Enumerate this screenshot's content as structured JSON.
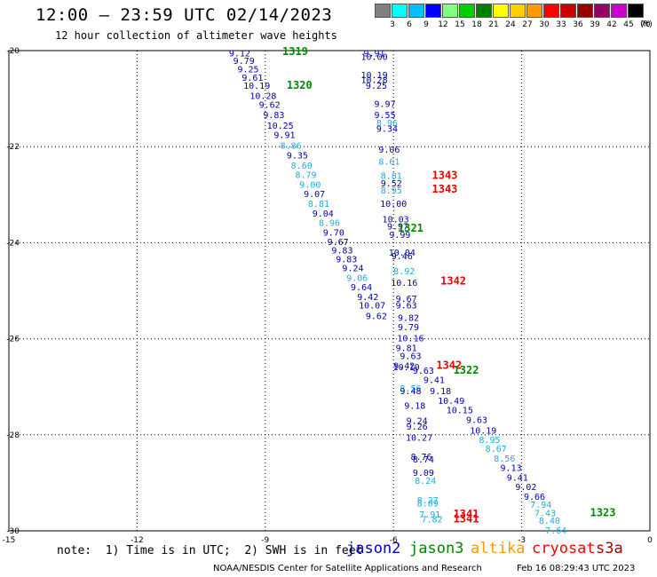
{
  "title": "12:00 – 23:59 UTC 02/14/2023",
  "subtitle": "12 hour collection of altimeter wave heights",
  "scale": {
    "unit": "(ft)",
    "items": [
      {
        "label": "3",
        "color": "#808080"
      },
      {
        "label": "6",
        "color": "#00ffff"
      },
      {
        "label": "9",
        "color": "#00bfff"
      },
      {
        "label": "12",
        "color": "#0000ff"
      },
      {
        "label": "15",
        "color": "#80ff80"
      },
      {
        "label": "18",
        "color": "#00d000"
      },
      {
        "label": "21",
        "color": "#008000"
      },
      {
        "label": "24",
        "color": "#ffff00"
      },
      {
        "label": "27",
        "color": "#ffd000"
      },
      {
        "label": "30",
        "color": "#ff9900"
      },
      {
        "label": "33",
        "color": "#ff0000"
      },
      {
        "label": "36",
        "color": "#cc0000"
      },
      {
        "label": "39",
        "color": "#990000"
      },
      {
        "label": "42",
        "color": "#990066"
      },
      {
        "label": "45",
        "color": "#cc00cc"
      },
      {
        "label": "70",
        "color": "#000000"
      }
    ]
  },
  "note": "note:  1) Time is in UTC;  2) SWH is in feet",
  "satellites": [
    {
      "name": "jason2",
      "color": "#0000cc"
    },
    {
      "name": "jason3",
      "color": "#008800"
    },
    {
      "name": "altika",
      "color": "#ff9900"
    },
    {
      "name": "cryosat",
      "color": "#ff0000"
    },
    {
      "name": "s3a",
      "color": "#aa0000"
    }
  ],
  "credit": "NOAA/NESDIS Center for Satellite Applications and Research",
  "timestamp": "Feb 16 08:29:43 UTC 2023",
  "colors": {
    "dark_blue": "#0000aa",
    "light_blue": "#22aadd",
    "green": "#008800",
    "red": "#ee0000"
  },
  "chart_data": {
    "type": "scatter",
    "xlim": [
      -15,
      0
    ],
    "ylim": [
      -30,
      -20
    ],
    "x_ticks": [
      "-15",
      "-12",
      "-9",
      "-6",
      "-3",
      "0"
    ],
    "y_ticks": [
      "-20",
      "-22",
      "-24",
      "-26",
      "-28",
      "-30"
    ],
    "grid": true,
    "labels": [
      {
        "x": -9.6,
        "y": -20.05,
        "text": "9.12",
        "c": "dark"
      },
      {
        "x": -8.3,
        "y": -20.02,
        "text": "1319",
        "c": "green"
      },
      {
        "x": -6.45,
        "y": -20.05,
        "text": "9.91",
        "c": "dark"
      },
      {
        "x": -6.45,
        "y": -20.12,
        "text": "10.00",
        "c": "dark"
      },
      {
        "x": -9.5,
        "y": -20.2,
        "text": "9.79",
        "c": "dark"
      },
      {
        "x": -9.4,
        "y": -20.38,
        "text": "9.25",
        "c": "dark"
      },
      {
        "x": -6.45,
        "y": -20.5,
        "text": "10.19",
        "c": "dark"
      },
      {
        "x": -9.3,
        "y": -20.55,
        "text": "9.61",
        "c": "dark"
      },
      {
        "x": -6.45,
        "y": -20.6,
        "text": "10.28",
        "c": "dark"
      },
      {
        "x": -9.2,
        "y": -20.72,
        "text": "10.19",
        "c": "dark"
      },
      {
        "x": -6.4,
        "y": -20.72,
        "text": "9.25",
        "c": "dark"
      },
      {
        "x": -8.2,
        "y": -20.72,
        "text": "1320",
        "c": "green"
      },
      {
        "x": -9.05,
        "y": -20.93,
        "text": "10.28",
        "c": "dark"
      },
      {
        "x": -8.9,
        "y": -21.12,
        "text": "9.62",
        "c": "dark"
      },
      {
        "x": -6.2,
        "y": -21.1,
        "text": "9.97",
        "c": "dark"
      },
      {
        "x": -8.8,
        "y": -21.33,
        "text": "9.83",
        "c": "dark"
      },
      {
        "x": -6.2,
        "y": -21.33,
        "text": "9.55",
        "c": "dark"
      },
      {
        "x": -8.65,
        "y": -21.55,
        "text": "10.25",
        "c": "dark"
      },
      {
        "x": -6.15,
        "y": -21.5,
        "text": "8.96",
        "c": "light"
      },
      {
        "x": -6.15,
        "y": -21.62,
        "text": "9.34",
        "c": "dark"
      },
      {
        "x": -8.55,
        "y": -21.75,
        "text": "9.91",
        "c": "dark"
      },
      {
        "x": -8.4,
        "y": -21.97,
        "text": "8.86",
        "c": "light"
      },
      {
        "x": -6.1,
        "y": -22.05,
        "text": "9.06",
        "c": "dark"
      },
      {
        "x": -8.25,
        "y": -22.17,
        "text": "9.35",
        "c": "dark"
      },
      {
        "x": -6.1,
        "y": -22.3,
        "text": "8.61",
        "c": "light"
      },
      {
        "x": -8.15,
        "y": -22.38,
        "text": "8.60",
        "c": "light"
      },
      {
        "x": -8.05,
        "y": -22.58,
        "text": "8.79",
        "c": "light"
      },
      {
        "x": -6.05,
        "y": -22.6,
        "text": "8.81",
        "c": "light"
      },
      {
        "x": -4.8,
        "y": -22.6,
        "text": "1343",
        "c": "red"
      },
      {
        "x": -6.05,
        "y": -22.75,
        "text": "9.52",
        "c": "dark"
      },
      {
        "x": -7.95,
        "y": -22.78,
        "text": "9.00",
        "c": "light"
      },
      {
        "x": -6.05,
        "y": -22.9,
        "text": "8.95",
        "c": "light"
      },
      {
        "x": -4.8,
        "y": -22.88,
        "text": "1343",
        "c": "red"
      },
      {
        "x": -7.85,
        "y": -22.98,
        "text": "9.07",
        "c": "dark"
      },
      {
        "x": -6.0,
        "y": -23.18,
        "text": "10.00",
        "c": "dark"
      },
      {
        "x": -7.75,
        "y": -23.18,
        "text": "8.81",
        "c": "light"
      },
      {
        "x": -7.65,
        "y": -23.38,
        "text": "9.04",
        "c": "dark"
      },
      {
        "x": -5.95,
        "y": -23.5,
        "text": "10.03",
        "c": "dark"
      },
      {
        "x": -7.5,
        "y": -23.58,
        "text": "8.96",
        "c": "light"
      },
      {
        "x": -5.9,
        "y": -23.65,
        "text": "9.97",
        "c": "dark"
      },
      {
        "x": -5.6,
        "y": -23.7,
        "text": "1321",
        "c": "green"
      },
      {
        "x": -7.4,
        "y": -23.78,
        "text": "9.70",
        "c": "dark"
      },
      {
        "x": -5.85,
        "y": -23.83,
        "text": "9.99",
        "c": "dark"
      },
      {
        "x": -7.3,
        "y": -23.97,
        "text": "9.67",
        "c": "dark"
      },
      {
        "x": -7.2,
        "y": -24.15,
        "text": "9.83",
        "c": "dark"
      },
      {
        "x": -5.8,
        "y": -24.2,
        "text": "10.04",
        "c": "dark"
      },
      {
        "x": -5.8,
        "y": -24.27,
        "text": "9.46",
        "c": "dark"
      },
      {
        "x": -7.1,
        "y": -24.33,
        "text": "9.83",
        "c": "dark"
      },
      {
        "x": -6.95,
        "y": -24.52,
        "text": "9.24",
        "c": "dark"
      },
      {
        "x": -5.75,
        "y": -24.58,
        "text": "8.92",
        "c": "light"
      },
      {
        "x": -6.85,
        "y": -24.72,
        "text": "9.06",
        "c": "light"
      },
      {
        "x": -5.75,
        "y": -24.82,
        "text": "10.16",
        "c": "dark"
      },
      {
        "x": -4.6,
        "y": -24.8,
        "text": "1342",
        "c": "red"
      },
      {
        "x": -6.75,
        "y": -24.92,
        "text": "9.64",
        "c": "dark"
      },
      {
        "x": -6.6,
        "y": -25.12,
        "text": "9.42",
        "c": "dark"
      },
      {
        "x": -5.7,
        "y": -25.16,
        "text": "9.67",
        "c": "dark"
      },
      {
        "x": -6.5,
        "y": -25.3,
        "text": "10.07",
        "c": "dark"
      },
      {
        "x": -5.7,
        "y": -25.3,
        "text": "9.63",
        "c": "dark"
      },
      {
        "x": -6.4,
        "y": -25.52,
        "text": "9.62",
        "c": "dark"
      },
      {
        "x": -5.65,
        "y": -25.55,
        "text": "9.82",
        "c": "dark"
      },
      {
        "x": -5.65,
        "y": -25.75,
        "text": "9.79",
        "c": "dark"
      },
      {
        "x": -5.6,
        "y": -25.98,
        "text": "10.16",
        "c": "dark"
      },
      {
        "x": -5.7,
        "y": -26.18,
        "text": "9.81",
        "c": "dark"
      },
      {
        "x": -5.6,
        "y": -26.35,
        "text": "9.63",
        "c": "dark"
      },
      {
        "x": -5.75,
        "y": -26.55,
        "text": "9.42",
        "c": "dark"
      },
      {
        "x": -4.7,
        "y": -26.55,
        "text": "1342",
        "c": "red"
      },
      {
        "x": -5.7,
        "y": -26.58,
        "text": "10.10",
        "c": "dark"
      },
      {
        "x": -5.3,
        "y": -26.65,
        "text": "9.63",
        "c": "dark"
      },
      {
        "x": -4.3,
        "y": -26.65,
        "text": "1322",
        "c": "green"
      },
      {
        "x": -5.05,
        "y": -26.85,
        "text": "9.41",
        "c": "dark"
      },
      {
        "x": -5.6,
        "y": -27.02,
        "text": "8.56",
        "c": "light"
      },
      {
        "x": -5.6,
        "y": -27.08,
        "text": "9.48",
        "c": "dark"
      },
      {
        "x": -4.9,
        "y": -27.08,
        "text": "9.18",
        "c": "dark"
      },
      {
        "x": -4.65,
        "y": -27.28,
        "text": "10.49",
        "c": "dark"
      },
      {
        "x": -5.5,
        "y": -27.38,
        "text": "9.18",
        "c": "dark"
      },
      {
        "x": -4.45,
        "y": -27.48,
        "text": "10.15",
        "c": "dark"
      },
      {
        "x": -5.45,
        "y": -27.7,
        "text": "9.24",
        "c": "dark"
      },
      {
        "x": -4.05,
        "y": -27.68,
        "text": "9.63",
        "c": "dark"
      },
      {
        "x": -5.45,
        "y": -27.82,
        "text": "9.26",
        "c": "dark"
      },
      {
        "x": -3.9,
        "y": -27.9,
        "text": "10.19",
        "c": "dark"
      },
      {
        "x": -5.4,
        "y": -28.05,
        "text": "10.27",
        "c": "dark"
      },
      {
        "x": -3.75,
        "y": -28.1,
        "text": "8.95",
        "c": "light"
      },
      {
        "x": -3.6,
        "y": -28.28,
        "text": "8.67",
        "c": "light"
      },
      {
        "x": -5.35,
        "y": -28.45,
        "text": "8.76",
        "c": "dark"
      },
      {
        "x": -5.3,
        "y": -28.5,
        "text": "8.74",
        "c": "dark"
      },
      {
        "x": -3.4,
        "y": -28.48,
        "text": "8.56",
        "c": "light"
      },
      {
        "x": -3.25,
        "y": -28.68,
        "text": "9.13",
        "c": "dark"
      },
      {
        "x": -5.3,
        "y": -28.78,
        "text": "9.09",
        "c": "dark"
      },
      {
        "x": -3.1,
        "y": -28.88,
        "text": "9.41",
        "c": "dark"
      },
      {
        "x": -5.25,
        "y": -28.95,
        "text": "8.24",
        "c": "light"
      },
      {
        "x": -2.9,
        "y": -29.08,
        "text": "9.02",
        "c": "dark"
      },
      {
        "x": -2.7,
        "y": -29.28,
        "text": "9.66",
        "c": "dark"
      },
      {
        "x": -5.2,
        "y": -29.35,
        "text": "8.27",
        "c": "light"
      },
      {
        "x": -5.2,
        "y": -29.42,
        "text": "8.09",
        "c": "light"
      },
      {
        "x": -2.55,
        "y": -29.45,
        "text": "7.94",
        "c": "light"
      },
      {
        "x": -5.15,
        "y": -29.65,
        "text": "7.91",
        "c": "light"
      },
      {
        "x": -4.3,
        "y": -29.65,
        "text": "1341",
        "c": "red"
      },
      {
        "x": -2.45,
        "y": -29.62,
        "text": "7.43",
        "c": "light"
      },
      {
        "x": -1.1,
        "y": -29.62,
        "text": "1323",
        "c": "green"
      },
      {
        "x": -5.1,
        "y": -29.75,
        "text": "7.82",
        "c": "light"
      },
      {
        "x": -4.3,
        "y": -29.75,
        "text": "1341",
        "c": "red"
      },
      {
        "x": -2.35,
        "y": -29.78,
        "text": "8.40",
        "c": "light"
      },
      {
        "x": -2.2,
        "y": -29.98,
        "text": "7.64",
        "c": "light"
      }
    ]
  }
}
